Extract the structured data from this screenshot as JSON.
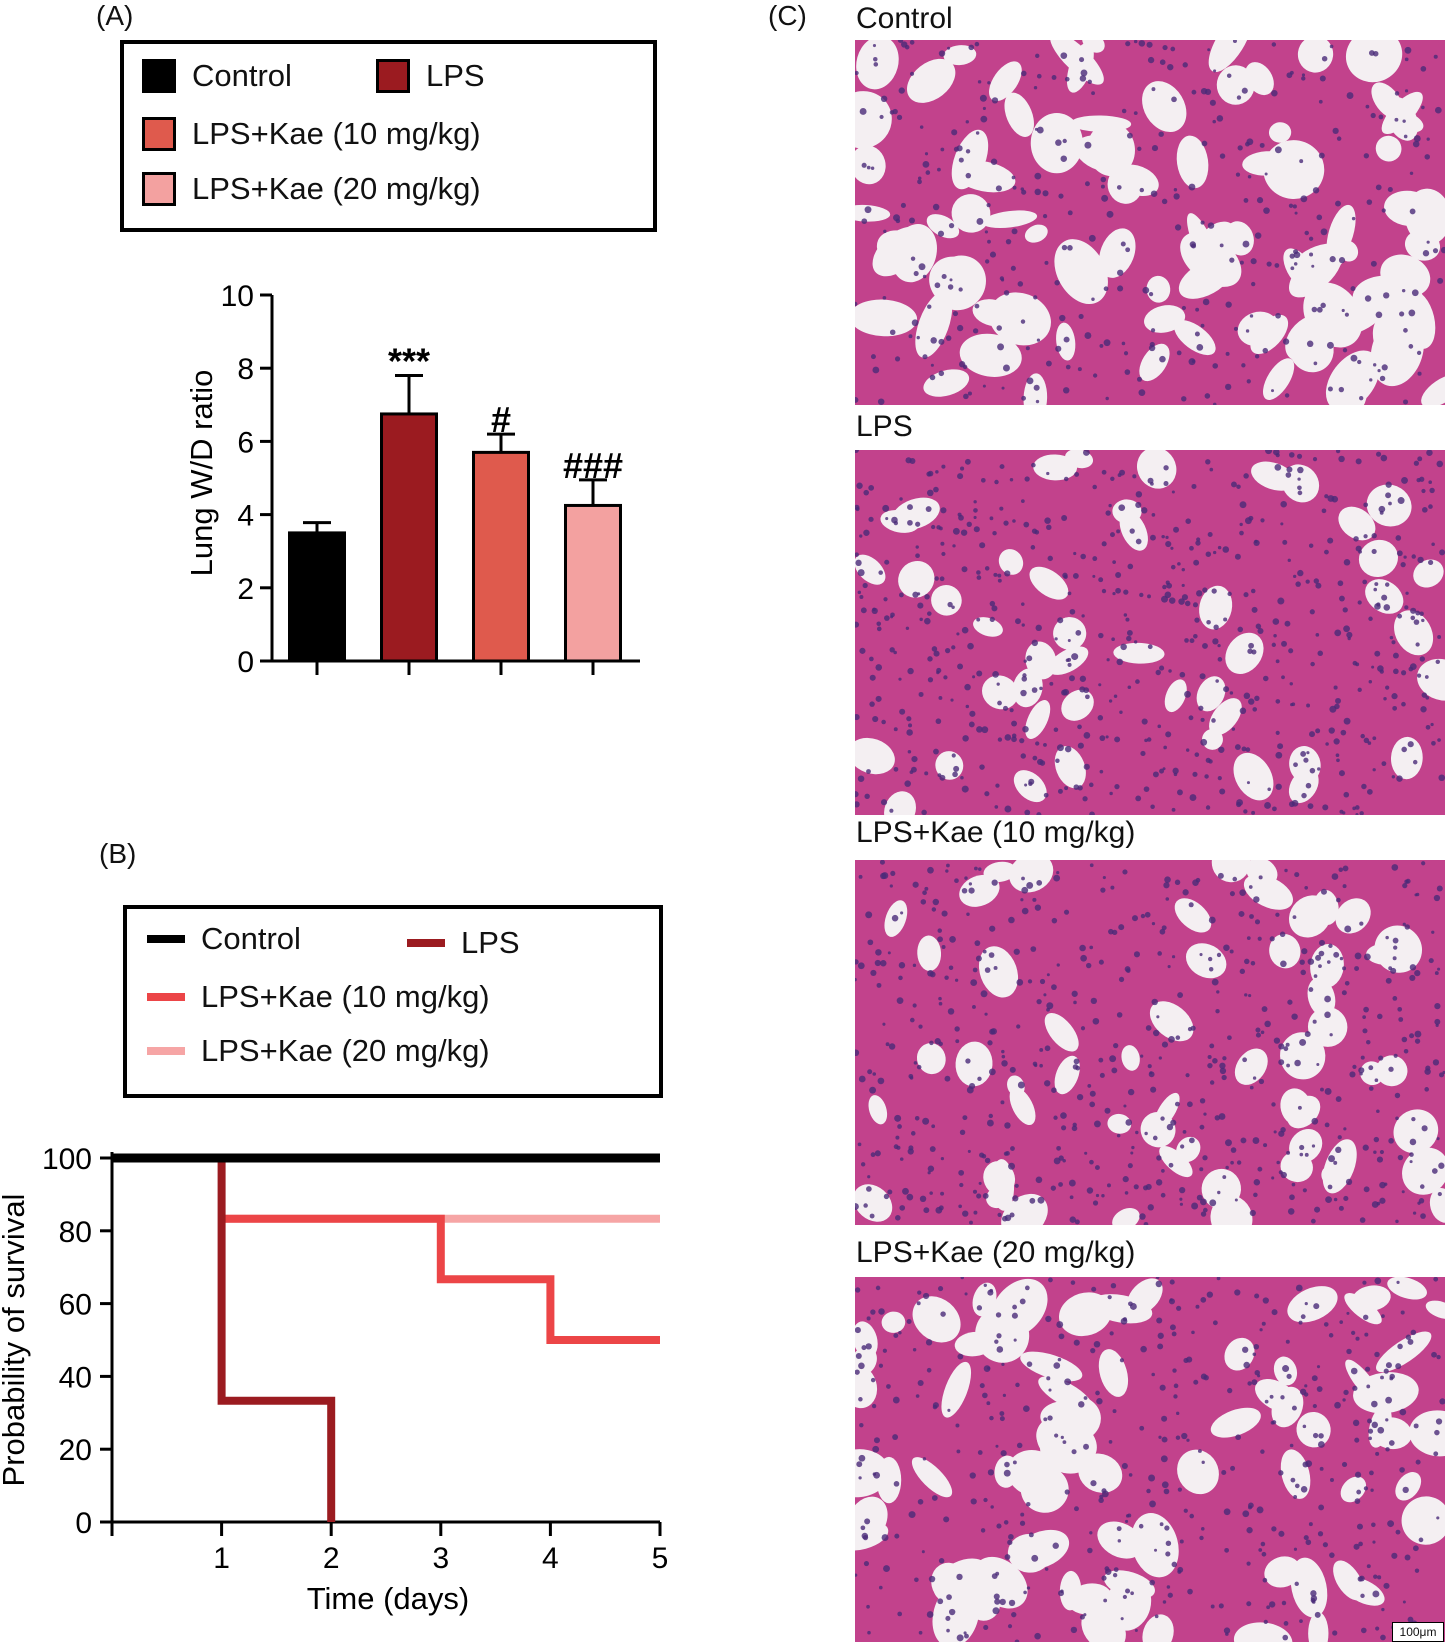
{
  "panel_labels": {
    "a": "(A)",
    "b": "(B)",
    "c": "(C)"
  },
  "colors": {
    "control": "#000000",
    "lps": "#9b1b20",
    "kae10": "#df5a4d",
    "kae20": "#f3a1a0",
    "line_kae10": "#ec4547",
    "line_kae20": "#f6a5a5"
  },
  "legend_a": [
    {
      "label": "Control",
      "color": "#000000"
    },
    {
      "label": "LPS",
      "color": "#9b1b20"
    },
    {
      "label": "LPS+Kae (10 mg/kg)",
      "color": "#df5a4d"
    },
    {
      "label": "LPS+Kae (20 mg/kg)",
      "color": "#f3a1a0"
    }
  ],
  "legend_b": [
    {
      "label": "Control",
      "color": "#000000"
    },
    {
      "label": "LPS",
      "color": "#9b1b20"
    },
    {
      "label": "LPS+Kae (10 mg/kg)",
      "color": "#ec4547"
    },
    {
      "label": "LPS+Kae (20 mg/kg)",
      "color": "#f6a5a5"
    }
  ],
  "chart_data": [
    {
      "type": "bar",
      "panel": "(A)",
      "categories": [
        "Control",
        "LPS",
        "LPS+Kae (10 mg/kg)",
        "LPS+Kae (20 mg/kg)"
      ],
      "values": [
        3.5,
        6.75,
        5.7,
        4.25
      ],
      "errors": [
        0.28,
        1.05,
        0.5,
        0.7
      ],
      "annotations": [
        "",
        "***",
        "#",
        "###"
      ],
      "ylabel": "Lung W/D ratio",
      "ylim": [
        0,
        10
      ],
      "yticks": [
        0,
        2,
        4,
        6,
        8,
        10
      ],
      "grid": false
    },
    {
      "type": "line",
      "panel": "(B)",
      "step": true,
      "xlabel": "Time (days)",
      "ylabel": "Probability of survival",
      "xlim": [
        0,
        5
      ],
      "ylim": [
        0,
        100
      ],
      "xticks": [
        1,
        2,
        3,
        4,
        5
      ],
      "yticks": [
        0,
        20,
        40,
        60,
        80,
        100
      ],
      "grid": false,
      "series": [
        {
          "name": "Control",
          "x": [
            0,
            5
          ],
          "y": [
            100,
            100
          ]
        },
        {
          "name": "LPS",
          "x": [
            1,
            1,
            1,
            2,
            2
          ],
          "y": [
            100,
            83.3,
            33.3,
            33.3,
            0
          ]
        },
        {
          "name": "LPS+Kae (10 mg/kg)",
          "x": [
            1,
            3,
            3,
            4,
            4,
            5
          ],
          "y": [
            83.3,
            83.3,
            66.7,
            66.7,
            50,
            50
          ]
        },
        {
          "name": "LPS+Kae (20 mg/kg)",
          "x": [
            1,
            5
          ],
          "y": [
            83.3,
            83.3
          ]
        }
      ]
    }
  ],
  "histology": {
    "panels": [
      {
        "title": "Control",
        "density": 0.42,
        "seed": 11
      },
      {
        "title": "LPS",
        "density": 0.72,
        "seed": 23
      },
      {
        "title": "LPS+Kae (10 mg/kg)",
        "density": 0.65,
        "seed": 37
      },
      {
        "title": "LPS+Kae (20 mg/kg)",
        "density": 0.52,
        "seed": 53
      }
    ],
    "scale_bar": "100μm"
  }
}
